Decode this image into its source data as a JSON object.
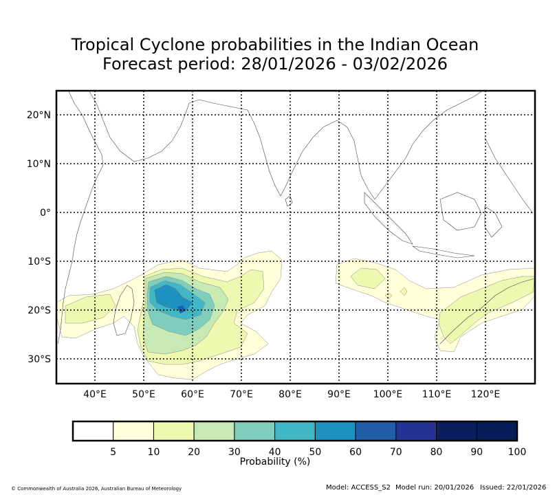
{
  "title": {
    "line1": "Tropical Cyclone probabilities in the Indian Ocean",
    "line2": "Forecast period: 28/01/2026 - 03/02/2026"
  },
  "axes": {
    "lat_ticks": [
      "20°N",
      "10°N",
      "0°",
      "10°S",
      "20°S",
      "30°S"
    ],
    "lon_ticks": [
      "40°E",
      "50°E",
      "60°E",
      "70°E",
      "80°E",
      "90°E",
      "100°E",
      "110°E",
      "120°E"
    ]
  },
  "colorbar": {
    "label": "Probability (%)",
    "ticks": [
      "5",
      "10",
      "20",
      "30",
      "40",
      "50",
      "60",
      "70",
      "80",
      "90",
      "100"
    ],
    "colors": [
      "#ffffff",
      "#ffffd9",
      "#edf8b1",
      "#c7e9b4",
      "#7fcdbb",
      "#41b6c4",
      "#1d91c0",
      "#225ea8",
      "#253494",
      "#0a1f5e",
      "#081d58"
    ]
  },
  "footer": {
    "copyright": "© Commonwealth of Australia 2026, Australian Bureau of Meteorology",
    "model": "Model: ACCESS_S2",
    "model_run": "Model run: 20/01/2026",
    "issued": "Issued: 22/01/2026"
  }
}
